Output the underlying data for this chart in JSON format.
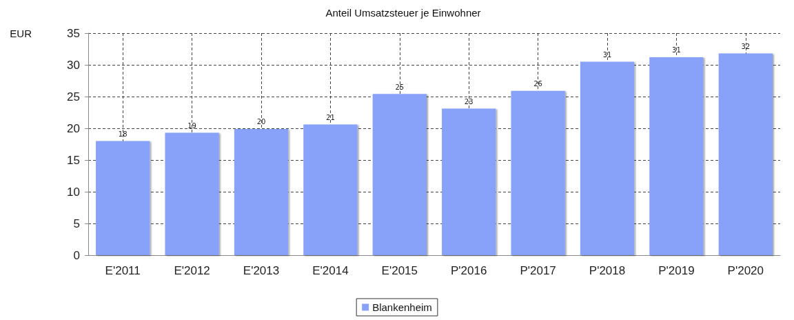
{
  "chart_data": {
    "type": "bar",
    "title": "Anteil Umsatzsteuer je Einwohner",
    "ylabel": "EUR",
    "categories": [
      "E'2011",
      "E'2012",
      "E'2013",
      "E'2014",
      "E'2015",
      "P'2016",
      "P'2017",
      "P'2018",
      "P'2019",
      "P'2020"
    ],
    "series": [
      {
        "name": "Blankenheim",
        "color": "#88a2fa",
        "values": [
          18.0,
          19.3,
          19.9,
          20.6,
          25.4,
          23.1,
          25.9,
          30.5,
          31.2,
          31.8
        ],
        "value_labels": [
          "18",
          "19",
          "20",
          "21",
          "25",
          "23",
          "26",
          "31",
          "31",
          "32"
        ]
      }
    ],
    "ylim": [
      0,
      35
    ],
    "yticks": [
      0,
      5,
      10,
      15,
      20,
      25,
      30,
      35
    ],
    "grid": true,
    "legend": "bottom"
  }
}
